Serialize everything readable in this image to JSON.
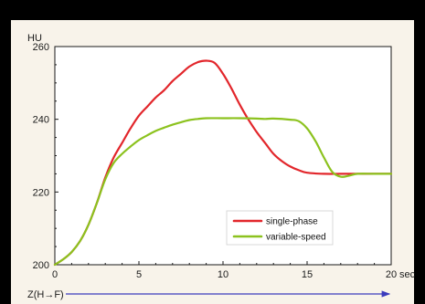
{
  "chart_data": {
    "type": "line",
    "y_unit_label": "HU",
    "x_unit_label": "sec",
    "x_axis_caption": "Z(H→F)",
    "xlim": [
      0,
      20
    ],
    "ylim": [
      200,
      260
    ],
    "x_ticks": [
      0,
      5,
      10,
      15,
      20
    ],
    "y_ticks": [
      200,
      220,
      240,
      260
    ],
    "legend_position": "bottom-right",
    "series": [
      {
        "name": "single-phase",
        "color": "#e2262b",
        "points": [
          [
            0,
            200
          ],
          [
            0.5,
            201.5
          ],
          [
            1,
            203.5
          ],
          [
            1.5,
            206.5
          ],
          [
            2,
            211
          ],
          [
            2.5,
            217
          ],
          [
            3,
            224
          ],
          [
            3.5,
            229.5
          ],
          [
            4,
            233.5
          ],
          [
            4.5,
            237.5
          ],
          [
            5,
            241
          ],
          [
            5.5,
            243.5
          ],
          [
            6,
            246
          ],
          [
            6.5,
            248
          ],
          [
            7,
            250.5
          ],
          [
            7.5,
            252.5
          ],
          [
            8,
            254.5
          ],
          [
            8.5,
            255.7
          ],
          [
            9,
            256.1
          ],
          [
            9.5,
            255.5
          ],
          [
            10,
            252.5
          ],
          [
            10.5,
            248.5
          ],
          [
            11,
            244
          ],
          [
            11.5,
            240
          ],
          [
            12,
            236.5
          ],
          [
            12.5,
            233.5
          ],
          [
            13,
            230.5
          ],
          [
            13.5,
            228.5
          ],
          [
            14,
            227
          ],
          [
            14.5,
            226
          ],
          [
            15,
            225.3
          ],
          [
            16,
            225
          ],
          [
            17,
            225
          ],
          [
            18,
            225
          ],
          [
            19,
            225
          ],
          [
            20,
            225
          ]
        ]
      },
      {
        "name": "variable-speed",
        "color": "#8cc21e",
        "points": [
          [
            0,
            200
          ],
          [
            0.5,
            201.5
          ],
          [
            1,
            203.5
          ],
          [
            1.5,
            206.5
          ],
          [
            2,
            211
          ],
          [
            2.5,
            217
          ],
          [
            3,
            223.5
          ],
          [
            3.5,
            228
          ],
          [
            4,
            230.5
          ],
          [
            4.5,
            232.5
          ],
          [
            5,
            234.3
          ],
          [
            5.5,
            235.6
          ],
          [
            6,
            236.8
          ],
          [
            6.5,
            237.7
          ],
          [
            7,
            238.5
          ],
          [
            7.5,
            239.2
          ],
          [
            8,
            239.8
          ],
          [
            8.5,
            240.1
          ],
          [
            9,
            240.3
          ],
          [
            10,
            240.3
          ],
          [
            11,
            240.3
          ],
          [
            12,
            240.2
          ],
          [
            12.5,
            240.1
          ],
          [
            13,
            240.2
          ],
          [
            14,
            239.9
          ],
          [
            14.5,
            239.5
          ],
          [
            15,
            237.5
          ],
          [
            15.5,
            234
          ],
          [
            16,
            229.5
          ],
          [
            16.5,
            225.5
          ],
          [
            17,
            224.2
          ],
          [
            17.5,
            224.5
          ],
          [
            18,
            225
          ],
          [
            19,
            225
          ],
          [
            20,
            225
          ]
        ]
      }
    ]
  },
  "colors": {
    "background": "#000000",
    "panel": "#f8f3ea",
    "plot": "#ffffff",
    "axis": "#1a1a1a",
    "arrow": "#3b3bbd"
  }
}
